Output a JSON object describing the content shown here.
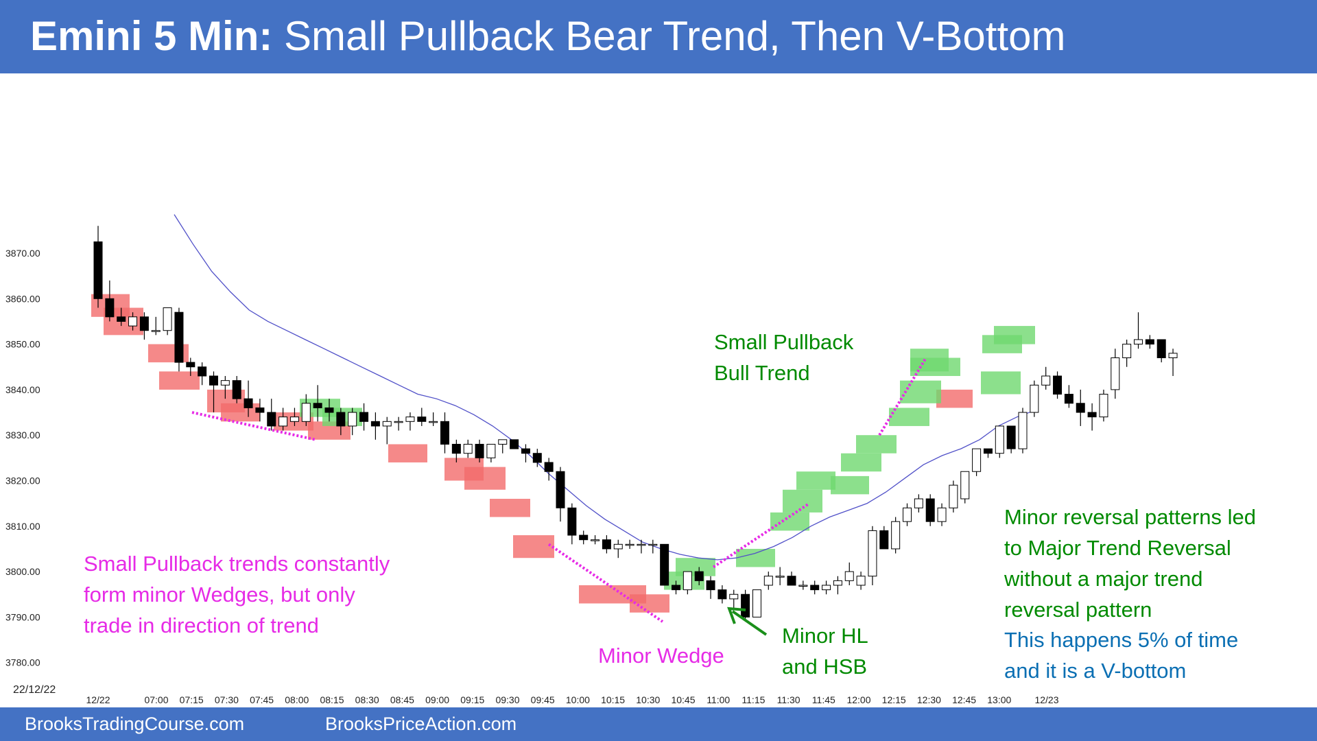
{
  "title": {
    "bold": "Emini 5 Min:",
    "rest": " Small Pullback Bear Trend, Then V-Bottom"
  },
  "footer": {
    "left": "BrooksTradingCourse.com",
    "right": "BrooksPriceAction.com"
  },
  "annotations": {
    "spb_bull": "Small Pullback\nBull Trend",
    "spb_wedges": "Small Pullback trends constantly\nform minor Wedges, but only\ntrade in direction of trend",
    "minor_wedge": "Minor Wedge",
    "minor_hl": "Minor HL\nand HSB",
    "reversal_green": "Minor reversal patterns led\nto Major Trend Reversal\nwithout a major trend\nreversal pattern",
    "reversal_blue": "This happens 5% of time\nand it is a V-bottom"
  },
  "colors": {
    "title_bar": "#4472c4",
    "bear_highlight": "#f26b6b",
    "bull_highlight": "#6fd86f",
    "ema_line": "#5050c8",
    "wedge_line": "#e62be6",
    "arrow": "#1a8f1a"
  },
  "chart_data": {
    "type": "candlestick",
    "date_label": "22/12/22",
    "ylim": [
      3778,
      3880
    ],
    "yticks": [
      "3870.00",
      "3860.00",
      "3850.00",
      "3840.00",
      "3830.00",
      "3820.00",
      "3810.00",
      "3800.00",
      "3790.00",
      "3780.00"
    ],
    "xticks": [
      "12/22",
      "07:00",
      "07:15",
      "07:30",
      "07:45",
      "08:00",
      "08:15",
      "08:30",
      "08:45",
      "09:00",
      "09:15",
      "09:30",
      "09:45",
      "10:00",
      "10:15",
      "10:30",
      "10:45",
      "11:00",
      "11:15",
      "11:30",
      "11:45",
      "12:00",
      "12:15",
      "12:30",
      "12:45",
      "13:00",
      "12/23"
    ],
    "candles": [
      [
        3872.5,
        3876,
        3858,
        3860
      ],
      [
        3860,
        3864,
        3855,
        3856
      ],
      [
        3856,
        3858,
        3854,
        3855
      ],
      [
        3854,
        3857,
        3853,
        3856
      ],
      [
        3856,
        3857,
        3851,
        3853
      ],
      [
        3853,
        3856,
        3852,
        3853
      ],
      [
        3853,
        3858,
        3852,
        3858
      ],
      [
        3857,
        3858,
        3844,
        3846
      ],
      [
        3846,
        3847,
        3843,
        3845
      ],
      [
        3845,
        3846,
        3841,
        3843
      ],
      [
        3843,
        3844,
        3835,
        3841
      ],
      [
        3841,
        3843,
        3838,
        3842
      ],
      [
        3842,
        3843,
        3837,
        3838
      ],
      [
        3838,
        3842,
        3834,
        3836
      ],
      [
        3836,
        3838,
        3833,
        3835
      ],
      [
        3835,
        3838,
        3831,
        3832
      ],
      [
        3832,
        3836,
        3831,
        3834
      ],
      [
        3833,
        3836,
        3832,
        3834
      ],
      [
        3833,
        3839,
        3832,
        3837
      ],
      [
        3837,
        3841,
        3833,
        3836
      ],
      [
        3836,
        3838,
        3833,
        3835
      ],
      [
        3835,
        3836,
        3830,
        3832
      ],
      [
        3832,
        3836,
        3830,
        3835
      ],
      [
        3835,
        3837,
        3831,
        3833
      ],
      [
        3833,
        3835,
        3829,
        3832
      ],
      [
        3832,
        3834,
        3828,
        3833
      ],
      [
        3833,
        3834,
        3831,
        3833
      ],
      [
        3833,
        3835,
        3831,
        3834
      ],
      [
        3834,
        3836,
        3832,
        3833
      ],
      [
        3833,
        3835,
        3832,
        3833
      ],
      [
        3833,
        3835,
        3826,
        3828
      ],
      [
        3828,
        3829,
        3824,
        3826
      ],
      [
        3826,
        3829,
        3825,
        3828
      ],
      [
        3828,
        3829,
        3824,
        3825
      ],
      [
        3825,
        3828,
        3824,
        3828
      ],
      [
        3828,
        3829,
        3826,
        3829
      ],
      [
        3829,
        3829,
        3827,
        3827
      ],
      [
        3827,
        3828,
        3824,
        3826
      ],
      [
        3826,
        3827,
        3823,
        3824
      ],
      [
        3824,
        3825,
        3820,
        3822
      ],
      [
        3822,
        3823,
        3811,
        3814
      ],
      [
        3814,
        3815,
        3806,
        3808
      ],
      [
        3808,
        3809,
        3806,
        3807
      ],
      [
        3807,
        3808,
        3806,
        3807
      ],
      [
        3807,
        3808,
        3804,
        3805
      ],
      [
        3805,
        3807,
        3803,
        3806
      ],
      [
        3806,
        3807,
        3805,
        3806
      ],
      [
        3806,
        3807,
        3804,
        3806
      ],
      [
        3806,
        3807,
        3804,
        3806
      ],
      [
        3806,
        3806,
        3797,
        3797
      ],
      [
        3797,
        3798,
        3795,
        3796
      ],
      [
        3796,
        3800,
        3795,
        3800
      ],
      [
        3800,
        3801,
        3797,
        3798
      ],
      [
        3798,
        3799,
        3794,
        3796
      ],
      [
        3796,
        3797,
        3793,
        3794
      ],
      [
        3794,
        3796,
        3792,
        3795
      ],
      [
        3795,
        3796,
        3789,
        3790
      ],
      [
        3790,
        3796,
        3790,
        3796
      ],
      [
        3797,
        3800,
        3796,
        3799
      ],
      [
        3799,
        3801,
        3797,
        3799
      ],
      [
        3799,
        3800,
        3797,
        3797
      ],
      [
        3797,
        3798,
        3796,
        3797
      ],
      [
        3797,
        3798,
        3795,
        3796
      ],
      [
        3796,
        3798,
        3795,
        3797
      ],
      [
        3797,
        3799,
        3795,
        3798
      ],
      [
        3798,
        3802,
        3797,
        3800
      ],
      [
        3797,
        3800,
        3796,
        3799
      ],
      [
        3799,
        3810,
        3797,
        3809
      ],
      [
        3809,
        3810,
        3805,
        3805
      ],
      [
        3805,
        3812,
        3804,
        3811
      ],
      [
        3811,
        3815,
        3810,
        3814
      ],
      [
        3814,
        3817,
        3813,
        3816
      ],
      [
        3816,
        3817,
        3810,
        3811
      ],
      [
        3811,
        3815,
        3810,
        3814
      ],
      [
        3814,
        3820,
        3813,
        3819
      ],
      [
        3816,
        3822,
        3815,
        3822
      ],
      [
        3822,
        3827,
        3821,
        3827
      ],
      [
        3827,
        3827,
        3825,
        3826
      ],
      [
        3826,
        3832,
        3825,
        3832
      ],
      [
        3832,
        3832,
        3826,
        3827
      ],
      [
        3827,
        3836,
        3826,
        3835
      ],
      [
        3835,
        3842,
        3834,
        3841
      ],
      [
        3841,
        3845,
        3840,
        3843
      ],
      [
        3843,
        3844,
        3838,
        3839
      ],
      [
        3839,
        3841,
        3836,
        3837
      ],
      [
        3837,
        3840,
        3832,
        3835
      ],
      [
        3835,
        3837,
        3831,
        3834
      ],
      [
        3834,
        3840,
        3833,
        3839
      ],
      [
        3840,
        3849,
        3838,
        3847
      ],
      [
        3847,
        3851,
        3845,
        3850
      ],
      [
        3850,
        3857,
        3849,
        3851
      ],
      [
        3851,
        3852,
        3849,
        3850
      ],
      [
        3851,
        3851,
        3846,
        3847
      ],
      [
        3847,
        3849,
        3843,
        3848
      ]
    ],
    "ema": [
      [
        3878.5,
        3872,
        3866,
        3861.5,
        3857.5,
        3855,
        3853,
        3851,
        3849,
        3847,
        3845,
        3843,
        3841,
        3839,
        3838,
        3836.5,
        3834.5,
        3832,
        3829,
        3825.5,
        3821.5,
        3818,
        3814.5,
        3811.5,
        3809,
        3806.5,
        3805,
        3803.8,
        3803,
        3802.6,
        3803,
        3804,
        3805.5,
        3807.5,
        3810,
        3812,
        3813.5,
        3815,
        3817.5,
        3820.5,
        3823.5,
        3825.5,
        3827,
        3829,
        3832,
        3834,
        3835.5
      ]
    ]
  }
}
